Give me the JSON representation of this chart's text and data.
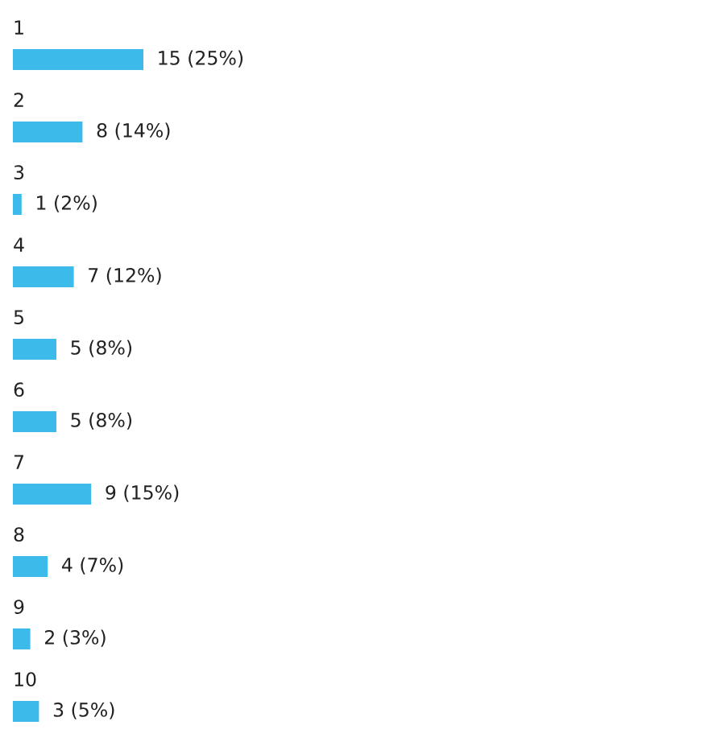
{
  "chart_data": {
    "type": "bar",
    "orientation": "horizontal",
    "categories": [
      "1",
      "2",
      "3",
      "4",
      "5",
      "6",
      "7",
      "8",
      "9",
      "10"
    ],
    "values": [
      15,
      8,
      1,
      7,
      5,
      5,
      9,
      4,
      2,
      3
    ],
    "color": "#3cbbea",
    "value_labels": [
      "15 (25%)",
      "8 (14%)",
      "1 (2%)",
      "7 (12%)",
      "5 (8%)",
      "5 (8%)",
      "9 (15%)",
      "4 (7%)",
      "2 (3%)",
      "3 (5%)"
    ],
    "legend": false
  }
}
